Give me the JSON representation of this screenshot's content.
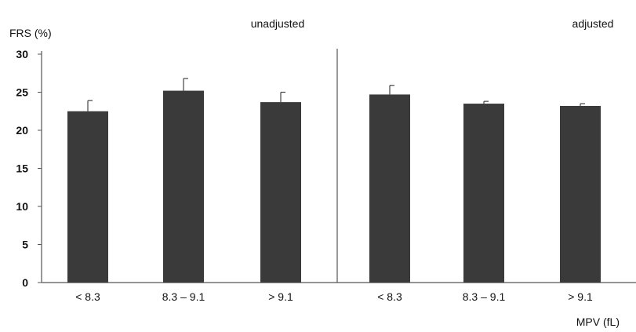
{
  "chart_data": {
    "type": "bar",
    "ylabel": "FRS (%)",
    "xlabel": "MPV (fL)",
    "ylim": [
      0,
      30
    ],
    "yticks": [
      0,
      5,
      10,
      15,
      20,
      25,
      30
    ],
    "bar_color": "#3a3a3a",
    "grid": false,
    "panels": [
      {
        "title": "unadjusted",
        "categories": [
          "< 8.3",
          "8.3 – 9.1",
          "> 9.1"
        ],
        "values": [
          22.5,
          25.2,
          23.7
        ],
        "error_upper": [
          1.4,
          1.6,
          1.3
        ]
      },
      {
        "title": "adjusted",
        "categories": [
          "< 8.3",
          "8.3 – 9.1",
          "> 9.1"
        ],
        "values": [
          24.7,
          23.5,
          23.2
        ],
        "error_upper": [
          1.2,
          0.3,
          0.3
        ]
      }
    ]
  }
}
